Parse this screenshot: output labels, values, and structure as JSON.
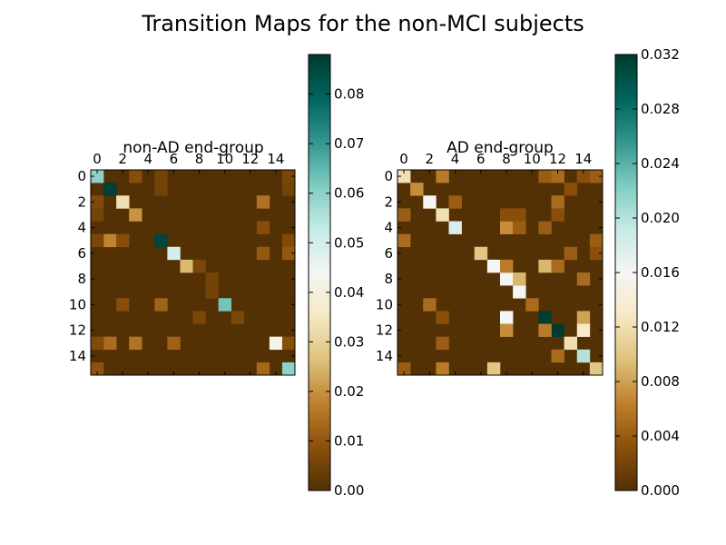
{
  "figure": {
    "title": "Transition Maps for the non-MCI subjects"
  },
  "chart_data": [
    {
      "type": "heatmap",
      "title": "non-AD end-group",
      "x_ticks": [
        "0",
        "2",
        "4",
        "6",
        "8",
        "10",
        "12",
        "14"
      ],
      "y_ticks": [
        "0",
        "2",
        "4",
        "6",
        "8",
        "10",
        "12",
        "14"
      ],
      "grid_size": 16,
      "colormap": "BrBG",
      "colorbar": {
        "min": 0.0,
        "max": 0.088,
        "ticks": [
          "0.00",
          "0.01",
          "0.02",
          "0.03",
          "0.04",
          "0.05",
          "0.06",
          "0.07",
          "0.08"
        ]
      },
      "cells": [
        [
          0,
          0,
          0.06
        ],
        [
          1,
          1,
          0.087
        ],
        [
          2,
          2,
          0.033
        ],
        [
          3,
          3,
          0.02
        ],
        [
          5,
          5,
          0.086
        ],
        [
          6,
          6,
          0.05
        ],
        [
          7,
          7,
          0.025
        ],
        [
          10,
          10,
          0.063
        ],
        [
          13,
          14,
          0.042
        ],
        [
          15,
          15,
          0.06
        ],
        [
          5,
          1,
          0.018
        ],
        [
          0,
          3,
          0.008
        ],
        [
          1,
          5,
          0.005
        ],
        [
          2,
          13,
          0.015
        ],
        [
          4,
          13,
          0.008
        ],
        [
          6,
          13,
          0.01
        ],
        [
          10,
          5,
          0.012
        ],
        [
          13,
          1,
          0.014
        ],
        [
          13,
          3,
          0.015
        ],
        [
          13,
          6,
          0.012
        ],
        [
          15,
          13,
          0.013
        ],
        [
          10,
          2,
          0.008
        ],
        [
          5,
          2,
          0.008
        ],
        [
          15,
          0,
          0.009
        ],
        [
          13,
          0,
          0.007
        ],
        [
          11,
          8,
          0.006
        ],
        [
          11,
          11,
          0.006
        ],
        [
          7,
          8,
          0.006
        ],
        [
          8,
          9,
          0.005
        ],
        [
          9,
          9,
          0.005
        ],
        [
          2,
          0,
          0.007
        ],
        [
          5,
          0,
          0.006
        ],
        [
          13,
          15,
          0.008
        ],
        [
          0,
          15,
          0.006
        ],
        [
          1,
          15,
          0.005
        ],
        [
          5,
          15,
          0.007
        ],
        [
          6,
          15,
          0.01
        ],
        [
          3,
          0,
          0.005
        ],
        [
          0,
          5,
          0.005
        ]
      ]
    },
    {
      "type": "heatmap",
      "title": "AD end-group",
      "x_ticks": [
        "0",
        "2",
        "4",
        "6",
        "8",
        "10",
        "12",
        "14"
      ],
      "y_ticks": [
        "0",
        "2",
        "4",
        "6",
        "8",
        "10",
        "12",
        "14"
      ],
      "grid_size": 16,
      "colormap": "BrBG",
      "colorbar": {
        "min": 0.0,
        "max": 0.032,
        "ticks": [
          "0.000",
          "0.004",
          "0.008",
          "0.012",
          "0.016",
          "0.020",
          "0.024",
          "0.028",
          "0.032"
        ]
      },
      "cells": [
        [
          0,
          0,
          0.012
        ],
        [
          1,
          1,
          0.007
        ],
        [
          2,
          2,
          0.016
        ],
        [
          3,
          3,
          0.012
        ],
        [
          4,
          4,
          0.018
        ],
        [
          6,
          6,
          0.01
        ],
        [
          7,
          7,
          0.016
        ],
        [
          8,
          8,
          0.016
        ],
        [
          9,
          9,
          0.016
        ],
        [
          10,
          10,
          0.005
        ],
        [
          11,
          11,
          0.032
        ],
        [
          12,
          12,
          0.032
        ],
        [
          13,
          13,
          0.012
        ],
        [
          14,
          14,
          0.02
        ],
        [
          15,
          15,
          0.01
        ],
        [
          0,
          3,
          0.006
        ],
        [
          0,
          11,
          0.004
        ],
        [
          0,
          12,
          0.005
        ],
        [
          0,
          15,
          0.004
        ],
        [
          0,
          14,
          0.003
        ],
        [
          1,
          13,
          0.003
        ],
        [
          2,
          12,
          0.005
        ],
        [
          2,
          4,
          0.004
        ],
        [
          3,
          0,
          0.004
        ],
        [
          3,
          12,
          0.003
        ],
        [
          4,
          8,
          0.007
        ],
        [
          4,
          9,
          0.004
        ],
        [
          4,
          11,
          0.004
        ],
        [
          3,
          8,
          0.003
        ],
        [
          3,
          9,
          0.003
        ],
        [
          5,
          0,
          0.005
        ],
        [
          5,
          15,
          0.004
        ],
        [
          6,
          13,
          0.004
        ],
        [
          7,
          8,
          0.006
        ],
        [
          7,
          11,
          0.009
        ],
        [
          7,
          12,
          0.005
        ],
        [
          8,
          9,
          0.009
        ],
        [
          8,
          14,
          0.005
        ],
        [
          10,
          2,
          0.005
        ],
        [
          11,
          8,
          0.016
        ],
        [
          11,
          14,
          0.008
        ],
        [
          12,
          8,
          0.007
        ],
        [
          12,
          11,
          0.006
        ],
        [
          12,
          14,
          0.013
        ],
        [
          13,
          3,
          0.004
        ],
        [
          14,
          12,
          0.005
        ],
        [
          15,
          0,
          0.004
        ],
        [
          15,
          3,
          0.006
        ],
        [
          15,
          7,
          0.01
        ],
        [
          11,
          3,
          0.003
        ],
        [
          6,
          15,
          0.003
        ]
      ]
    }
  ]
}
